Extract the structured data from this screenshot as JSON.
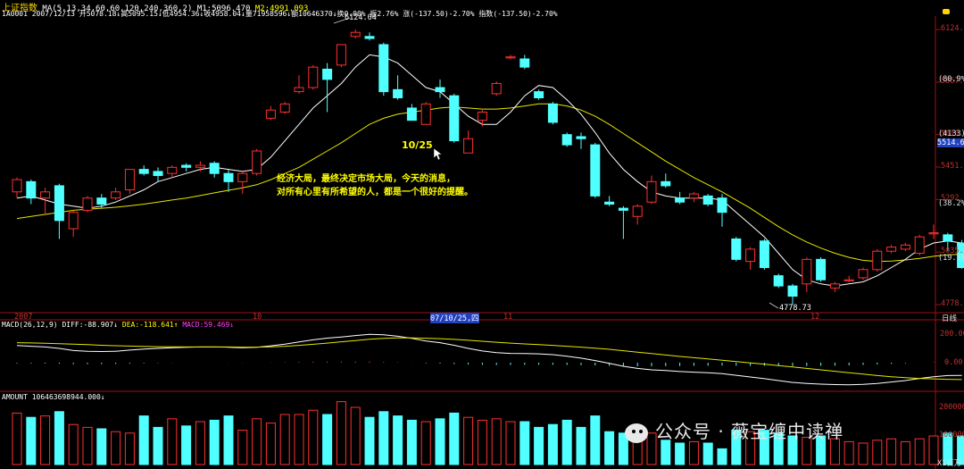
{
  "header": {
    "title": "上证指数",
    "ma": "MA(5,13,34,60,60,120,240,360,2)",
    "m1": "M1:5096.470",
    "m2": "M2:4991.093",
    "quote": "1A0001 2007/12/13 开5078.18↓高5095.15↓低4954.36↓收4958.04↓量71958596↓额10646370↓换0.00% 振2.76% 涨(-137.50)-2.70% 指数(-137.50)-2.70%"
  },
  "price_axis": {
    "ticks": [
      "6124.0",
      "5867.1",
      "5610.1",
      "5451.4",
      "5292.6",
      "5035.7",
      "4778.7"
    ],
    "right_labels": [
      "(80.9%)",
      "(4133)",
      "5514.67",
      "(38.2%)",
      "(19.1%)"
    ]
  },
  "date_axis": {
    "labels": [
      "2007",
      "10",
      "07/10/25,四",
      "11",
      "12"
    ],
    "right": "日线"
  },
  "annotations": {
    "high": "6124.04",
    "low": "4778.73",
    "date_mark": "10/25",
    "comment_line1": "经济大局，最终决定市场大局，今天的消息，",
    "comment_line2": "对所有心里有所希望的人，都是一个很好的提醒。"
  },
  "macd": {
    "header": "MACD(26,12,9)",
    "diff": "DIFF:-88.907↓",
    "dea": "DEA:-118.641↑",
    "macd": "MACD:59.469↓",
    "ticks": [
      "200.00",
      "0.00"
    ]
  },
  "amount": {
    "header": "AMOUNT 106463698944.000↓",
    "ticks": [
      "200000",
      "100000"
    ],
    "unit": "X1百万"
  },
  "watermark": "公众号 · 薇宝缠中读禅",
  "colors": {
    "up": "#ff3030",
    "down": "#50ffff",
    "ma_white": "#ffffff",
    "ma_yellow": "#e6e600"
  },
  "chart_data": {
    "type": "candlestick",
    "title": "上证指数",
    "ylim": [
      4700,
      6200
    ],
    "candles": [
      {
        "o": 5330,
        "c": 5390,
        "h": 5400,
        "l": 5300
      },
      {
        "o": 5380,
        "c": 5300,
        "h": 5390,
        "l": 5270
      },
      {
        "o": 5300,
        "c": 5330,
        "h": 5350,
        "l": 5220
      },
      {
        "o": 5360,
        "c": 5190,
        "h": 5370,
        "l": 5100
      },
      {
        "o": 5150,
        "c": 5230,
        "h": 5240,
        "l": 5110
      },
      {
        "o": 5240,
        "c": 5300,
        "h": 5310,
        "l": 5230
      },
      {
        "o": 5300,
        "c": 5270,
        "h": 5320,
        "l": 5250
      },
      {
        "o": 5300,
        "c": 5330,
        "h": 5350,
        "l": 5290
      },
      {
        "o": 5340,
        "c": 5440,
        "h": 5440,
        "l": 5320
      },
      {
        "o": 5440,
        "c": 5420,
        "h": 5460,
        "l": 5410
      },
      {
        "o": 5430,
        "c": 5410,
        "h": 5450,
        "l": 5380
      },
      {
        "o": 5420,
        "c": 5450,
        "h": 5460,
        "l": 5400
      },
      {
        "o": 5460,
        "c": 5450,
        "h": 5470,
        "l": 5430
      },
      {
        "o": 5450,
        "c": 5460,
        "h": 5480,
        "l": 5430
      },
      {
        "o": 5470,
        "c": 5420,
        "h": 5480,
        "l": 5400
      },
      {
        "o": 5420,
        "c": 5380,
        "h": 5440,
        "l": 5330
      },
      {
        "o": 5380,
        "c": 5420,
        "h": 5430,
        "l": 5320
      },
      {
        "o": 5420,
        "c": 5530,
        "h": 5540,
        "l": 5410
      },
      {
        "o": 5690,
        "c": 5730,
        "h": 5750,
        "l": 5680
      },
      {
        "o": 5720,
        "c": 5760,
        "h": 5770,
        "l": 5710
      },
      {
        "o": 5820,
        "c": 5840,
        "h": 5900,
        "l": 5810
      },
      {
        "o": 5840,
        "c": 5940,
        "h": 5950,
        "l": 5830
      },
      {
        "o": 5930,
        "c": 5880,
        "h": 5960,
        "l": 5720
      },
      {
        "o": 5950,
        "c": 6050,
        "h": 6050,
        "l": 5940
      },
      {
        "o": 6090,
        "c": 6110,
        "h": 6124,
        "l": 6080
      },
      {
        "o": 6090,
        "c": 6080,
        "h": 6110,
        "l": 6070
      },
      {
        "o": 6050,
        "c": 5820,
        "h": 6060,
        "l": 5800
      },
      {
        "o": 5830,
        "c": 5790,
        "h": 5900,
        "l": 5780
      },
      {
        "o": 5740,
        "c": 5680,
        "h": 5760,
        "l": 5680
      },
      {
        "o": 5660,
        "c": 5760,
        "h": 5770,
        "l": 5660
      },
      {
        "o": 5840,
        "c": 5820,
        "h": 5880,
        "l": 5790
      },
      {
        "o": 5800,
        "c": 5580,
        "h": 5810,
        "l": 5570
      },
      {
        "o": 5520,
        "c": 5590,
        "h": 5630,
        "l": 5520
      },
      {
        "o": 5680,
        "c": 5720,
        "h": 5730,
        "l": 5650
      },
      {
        "o": 5810,
        "c": 5860,
        "h": 5870,
        "l": 5800
      },
      {
        "o": 5990,
        "c": 5990,
        "h": 6000,
        "l": 5980
      },
      {
        "o": 5980,
        "c": 5940,
        "h": 6000,
        "l": 5930
      },
      {
        "o": 5820,
        "c": 5790,
        "h": 5830,
        "l": 5780
      },
      {
        "o": 5760,
        "c": 5670,
        "h": 5770,
        "l": 5660
      },
      {
        "o": 5610,
        "c": 5560,
        "h": 5620,
        "l": 5550
      },
      {
        "o": 5600,
        "c": 5590,
        "h": 5620,
        "l": 5540
      },
      {
        "o": 5560,
        "c": 5310,
        "h": 5570,
        "l": 5300
      },
      {
        "o": 5280,
        "c": 5270,
        "h": 5310,
        "l": 5260
      },
      {
        "o": 5250,
        "c": 5240,
        "h": 5260,
        "l": 5100
      },
      {
        "o": 5210,
        "c": 5260,
        "h": 5270,
        "l": 5170
      },
      {
        "o": 5280,
        "c": 5380,
        "h": 5410,
        "l": 5270
      },
      {
        "o": 5380,
        "c": 5360,
        "h": 5420,
        "l": 5350
      },
      {
        "o": 5300,
        "c": 5280,
        "h": 5330,
        "l": 5270
      },
      {
        "o": 5300,
        "c": 5320,
        "h": 5330,
        "l": 5280
      },
      {
        "o": 5310,
        "c": 5270,
        "h": 5320,
        "l": 5260
      },
      {
        "o": 5300,
        "c": 5230,
        "h": 5320,
        "l": 5160
      },
      {
        "o": 5100,
        "c": 5000,
        "h": 5110,
        "l": 4990
      },
      {
        "o": 4990,
        "c": 5050,
        "h": 5060,
        "l": 4950
      },
      {
        "o": 5090,
        "c": 4960,
        "h": 5100,
        "l": 4950
      },
      {
        "o": 4920,
        "c": 4870,
        "h": 4930,
        "l": 4860
      },
      {
        "o": 4870,
        "c": 4820,
        "h": 4880,
        "l": 4779
      },
      {
        "o": 4880,
        "c": 5000,
        "h": 5010,
        "l": 4840
      },
      {
        "o": 5000,
        "c": 4900,
        "h": 5010,
        "l": 4890
      },
      {
        "o": 4860,
        "c": 4880,
        "h": 4890,
        "l": 4840
      },
      {
        "o": 4900,
        "c": 4900,
        "h": 4920,
        "l": 4890
      },
      {
        "o": 4910,
        "c": 4950,
        "h": 4960,
        "l": 4900
      },
      {
        "o": 4950,
        "c": 5040,
        "h": 5050,
        "l": 4940
      },
      {
        "o": 5040,
        "c": 5060,
        "h": 5070,
        "l": 5030
      },
      {
        "o": 5050,
        "c": 5070,
        "h": 5080,
        "l": 5040
      },
      {
        "o": 5030,
        "c": 5110,
        "h": 5120,
        "l": 5020
      },
      {
        "o": 5130,
        "c": 5130,
        "h": 5170,
        "l": 5100
      },
      {
        "o": 5120,
        "c": 5090,
        "h": 5130,
        "l": 5040
      },
      {
        "o": 5080,
        "c": 4960,
        "h": 5095,
        "l": 4954
      }
    ],
    "ma_short": [
      5300,
      5310,
      5290,
      5270,
      5260,
      5250,
      5260,
      5280,
      5310,
      5340,
      5380,
      5400,
      5420,
      5440,
      5450,
      5440,
      5430,
      5440,
      5500,
      5580,
      5660,
      5740,
      5800,
      5860,
      5940,
      6000,
      5990,
      5960,
      5900,
      5840,
      5820,
      5760,
      5700,
      5660,
      5660,
      5720,
      5800,
      5850,
      5840,
      5780,
      5710,
      5620,
      5520,
      5440,
      5380,
      5330,
      5310,
      5300,
      5300,
      5300,
      5290,
      5230,
      5170,
      5110,
      5030,
      4950,
      4900,
      4880,
      4870,
      4880,
      4890,
      4920,
      4960,
      5000,
      5050,
      5080,
      5090,
      5080
    ],
    "ma_long": [
      5200,
      5210,
      5220,
      5230,
      5240,
      5245,
      5250,
      5255,
      5262,
      5270,
      5280,
      5290,
      5300,
      5312,
      5325,
      5338,
      5350,
      5365,
      5390,
      5420,
      5450,
      5490,
      5530,
      5570,
      5615,
      5660,
      5690,
      5710,
      5720,
      5730,
      5740,
      5745,
      5740,
      5735,
      5735,
      5740,
      5750,
      5760,
      5760,
      5750,
      5730,
      5700,
      5660,
      5615,
      5570,
      5525,
      5480,
      5440,
      5400,
      5365,
      5330,
      5290,
      5250,
      5205,
      5160,
      5120,
      5085,
      5055,
      5030,
      5010,
      4995,
      4990,
      4992,
      4997,
      5005,
      5015,
      5022,
      5025
    ],
    "macd_diff": [
      120,
      115,
      110,
      100,
      85,
      80,
      78,
      80,
      88,
      95,
      100,
      105,
      108,
      110,
      110,
      108,
      105,
      108,
      118,
      130,
      145,
      160,
      172,
      180,
      190,
      198,
      195,
      185,
      170,
      152,
      140,
      122,
      100,
      82,
      70,
      65,
      64,
      62,
      56,
      45,
      32,
      15,
      -5,
      -25,
      -40,
      -50,
      -55,
      -62,
      -66,
      -70,
      -76,
      -88,
      -100,
      -112,
      -125,
      -138,
      -145,
      -150,
      -153,
      -155,
      -152,
      -145,
      -135,
      -125,
      -110,
      -98,
      -90,
      -89
    ],
    "macd_dea": [
      140,
      138,
      136,
      133,
      130,
      126,
      122,
      119,
      116,
      114,
      112,
      111,
      110,
      110,
      110,
      110,
      109,
      109,
      111,
      115,
      121,
      129,
      137,
      146,
      155,
      164,
      170,
      173,
      173,
      171,
      168,
      163,
      157,
      150,
      143,
      137,
      131,
      126,
      121,
      115,
      109,
      102,
      94,
      84,
      74,
      64,
      54,
      44,
      35,
      26,
      17,
      8,
      -1,
      -10,
      -20,
      -30,
      -40,
      -50,
      -60,
      -70,
      -80,
      -90,
      -98,
      -105,
      -110,
      -113,
      -116,
      -118
    ],
    "macd_hist": [
      -40,
      -46,
      -52,
      -66,
      -90,
      -92,
      -88,
      -78,
      -56,
      -38,
      -24,
      -12,
      -4,
      0,
      0,
      -4,
      -8,
      -2,
      14,
      30,
      48,
      62,
      70,
      68,
      70,
      68,
      50,
      24,
      -6,
      -38,
      -56,
      -82,
      -114,
      -136,
      -146,
      -144,
      -134,
      -128,
      -130,
      -140,
      -154,
      -174,
      -198,
      -218,
      -228,
      -228,
      -218,
      -212,
      -202,
      -192,
      -186,
      -192,
      -198,
      -204,
      -210,
      -216,
      -210,
      -200,
      -186,
      -170,
      -144,
      -110,
      -74,
      -40,
      0,
      30,
      52,
      59
    ],
    "amount": [
      180000,
      165000,
      170000,
      185000,
      140000,
      130000,
      125000,
      115000,
      110000,
      170000,
      130000,
      160000,
      135000,
      150000,
      155000,
      170000,
      120000,
      160000,
      145000,
      175000,
      175000,
      190000,
      175000,
      220000,
      200000,
      165000,
      185000,
      170000,
      155000,
      150000,
      160000,
      180000,
      165000,
      155000,
      160000,
      150000,
      150000,
      130000,
      140000,
      155000,
      130000,
      170000,
      115000,
      110000,
      95000,
      110000,
      85000,
      75000,
      80000,
      75000,
      55000,
      120000,
      115000,
      120000,
      110000,
      100000,
      95000,
      100000,
      90000,
      80000,
      75000,
      85000,
      90000,
      80000,
      90000,
      100000,
      110000,
      100000
    ]
  }
}
